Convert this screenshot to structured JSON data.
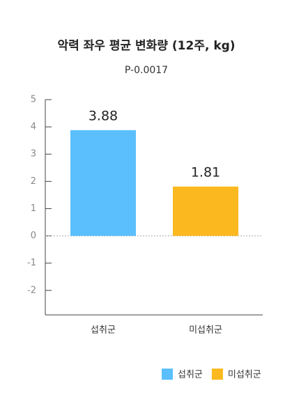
{
  "chart_data": {
    "type": "bar",
    "title": "악력 좌우 평균 변화량 (12주, kg)",
    "subtitle": "P-0.0017",
    "categories": [
      "섭취군",
      "미섭취군"
    ],
    "values": [
      3.88,
      1.81
    ],
    "colors": [
      "#5bbffd",
      "#fcb81f"
    ],
    "ylim": [
      -2.9,
      5
    ],
    "yticks": [
      5,
      4,
      3,
      2,
      1,
      0,
      -1,
      -2
    ],
    "legend": "bottom-right"
  }
}
